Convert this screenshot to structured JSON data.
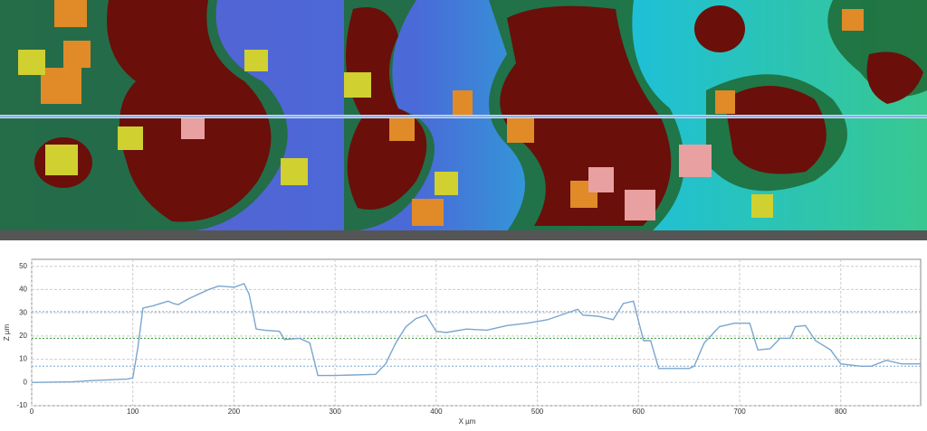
{
  "chart_data": {
    "type": "line",
    "xlabel": "X µm",
    "ylabel": "Z µm",
    "x": [
      0,
      40,
      60,
      95,
      100,
      105,
      110,
      120,
      135,
      140,
      145,
      155,
      165,
      175,
      185,
      200,
      210,
      215,
      222,
      230,
      245,
      250,
      265,
      275,
      283,
      300,
      340,
      350,
      360,
      370,
      380,
      390,
      400,
      410,
      430,
      450,
      470,
      490,
      510,
      530,
      540,
      545,
      560,
      575,
      585,
      595,
      605,
      612,
      620,
      650,
      655,
      665,
      680,
      695,
      710,
      718,
      730,
      740,
      750,
      755,
      765,
      775,
      790,
      800,
      820,
      830,
      845,
      860,
      879
    ],
    "series": [
      {
        "color": "#7aa6cf",
        "values": [
          0,
          0.3,
          0.8,
          1.5,
          2,
          15,
          32,
          33,
          35,
          34,
          33.5,
          36,
          38,
          40,
          41.5,
          41,
          42.5,
          38,
          23,
          22.5,
          22,
          18.5,
          19,
          17,
          3,
          3,
          3.5,
          8,
          17,
          24,
          27.5,
          29,
          22,
          21.5,
          23,
          22.5,
          24.5,
          25.5,
          27,
          30,
          31.5,
          29,
          28.5,
          27,
          34,
          35,
          18,
          18,
          6,
          6,
          7,
          17,
          24,
          25.5,
          25.5,
          14,
          14.5,
          19,
          19,
          24,
          24.5,
          18,
          14,
          8,
          7,
          7,
          9.5,
          8,
          8
        ]
      }
    ],
    "reference_lines": [
      {
        "value": 30.5,
        "color": "#7aa6cf"
      },
      {
        "value": 19,
        "color": "#2e9a2e"
      },
      {
        "value": 7,
        "color": "#7aa6cf"
      }
    ],
    "xlim": [
      0,
      879
    ],
    "ylim": [
      -10,
      53
    ],
    "xticks": [
      0,
      100,
      200,
      300,
      400,
      500,
      600,
      700,
      800
    ],
    "yticks": [
      -10,
      0,
      10,
      20,
      30,
      40,
      50
    ],
    "grid": true
  }
}
